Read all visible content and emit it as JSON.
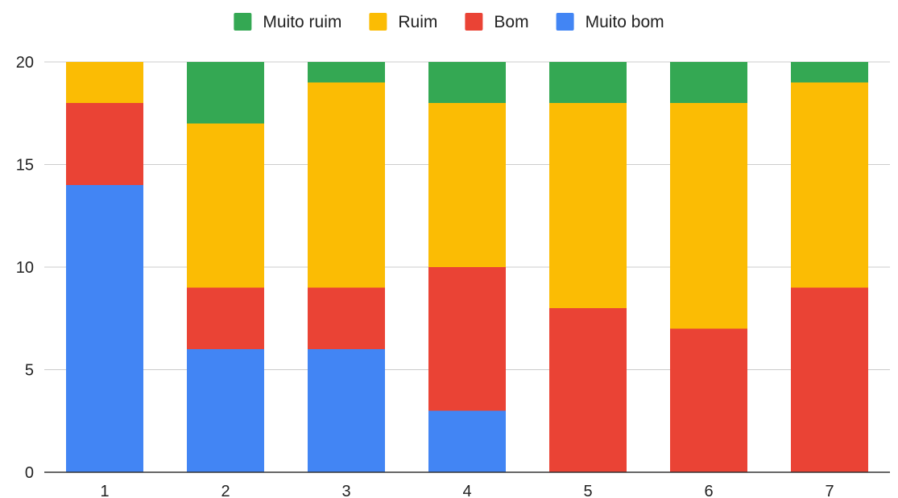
{
  "chart_data": {
    "type": "bar",
    "stacked": true,
    "categories": [
      "1",
      "2",
      "3",
      "4",
      "5",
      "6",
      "7"
    ],
    "series": [
      {
        "name": "Muito bom",
        "color": "#4285F4",
        "values": [
          14,
          6,
          6,
          3,
          0,
          0,
          0
        ]
      },
      {
        "name": "Bom",
        "color": "#EA4335",
        "values": [
          4,
          3,
          3,
          7,
          8,
          7,
          9
        ]
      },
      {
        "name": "Ruim",
        "color": "#FBBC04",
        "values": [
          2,
          8,
          10,
          8,
          10,
          11,
          10
        ]
      },
      {
        "name": "Muito ruim",
        "color": "#34A853",
        "values": [
          0,
          3,
          1,
          2,
          2,
          2,
          1
        ]
      }
    ],
    "legend_order": [
      "Muito ruim",
      "Ruim",
      "Bom",
      "Muito bom"
    ],
    "legend_position": "top",
    "y_ticks": [
      "0",
      "5",
      "10",
      "15",
      "20"
    ],
    "ylim": [
      0,
      20
    ],
    "grid": true,
    "title": "",
    "xlabel": "",
    "ylabel": ""
  }
}
